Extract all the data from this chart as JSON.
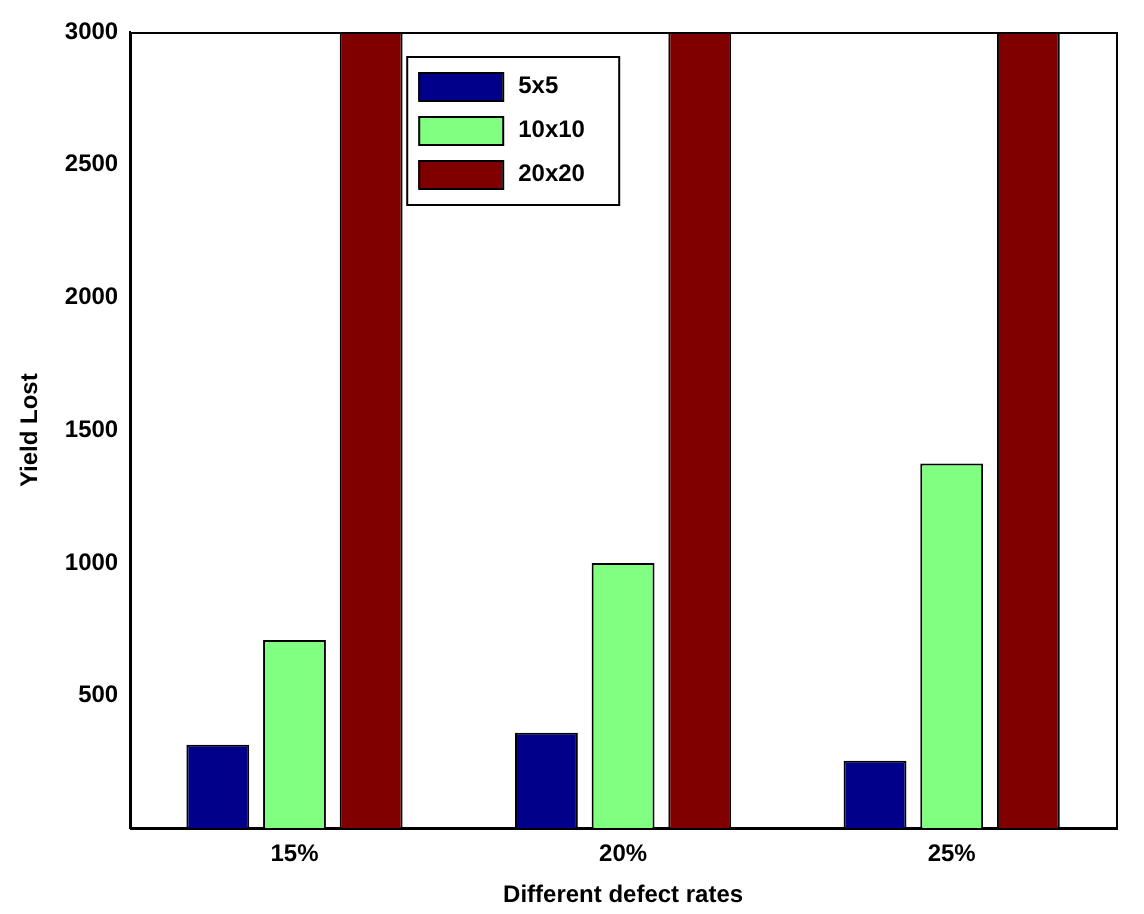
{
  "chart_data": {
    "type": "bar",
    "xlabel": "Different defect rates",
    "ylabel": "Yield Lost",
    "categories": [
      "15%",
      "20%",
      "25%"
    ],
    "series": [
      {
        "name": "5x5",
        "color": "#00008b",
        "values": [
          315,
          360,
          255
        ]
      },
      {
        "name": "10x10",
        "color": "#80ff80",
        "values": [
          710,
          1000,
          1375
        ]
      },
      {
        "name": "20x20",
        "color": "#800000",
        "values": [
          3000,
          3000,
          3000
        ]
      }
    ],
    "ylim": [
      0,
      3000
    ],
    "yticks": [
      500,
      1000,
      1500,
      2000,
      2500,
      3000
    ],
    "grid": false,
    "legend": "top"
  }
}
